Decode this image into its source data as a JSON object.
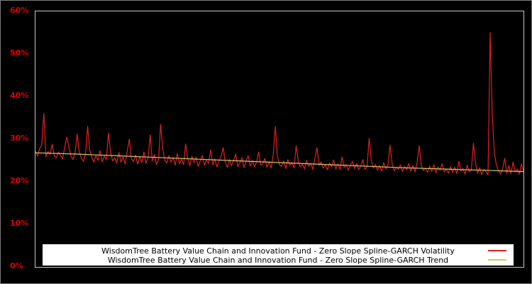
{
  "figure": {
    "background": "#000000",
    "border_color": "#7a7a7a"
  },
  "axis": {
    "tick_color": "#dd0000",
    "frame_color": "#c8c8c8"
  },
  "legend": {
    "background": "#ffffff",
    "text_color": "#000000"
  },
  "chart_data": {
    "type": "line",
    "title": "",
    "xlabel": "",
    "ylabel": "",
    "ylim": [
      0,
      60
    ],
    "grid": false,
    "legend_position": "bottom-center",
    "yticks": [
      "60%",
      "50%",
      "40%",
      "30%",
      "20%",
      "10%",
      "0%"
    ],
    "series": [
      {
        "name": "WisdomTree Battery Value Chain and Innovation Fund - Zero Slope Spline-GARCH Volatility",
        "color": "#e02020",
        "stroke_width": 1.2,
        "values": [
          27.2,
          26.0,
          27.8,
          28.6,
          36.0,
          25.9,
          27.1,
          26.4,
          28.8,
          26.1,
          25.6,
          27.0,
          26.2,
          25.4,
          28.0,
          30.5,
          28.3,
          26.0,
          25.2,
          26.8,
          31.2,
          27.0,
          25.5,
          24.8,
          26.5,
          33.0,
          27.5,
          25.8,
          24.6,
          26.2,
          25.0,
          27.3,
          24.7,
          26.0,
          25.2,
          31.5,
          26.8,
          24.9,
          25.6,
          24.4,
          26.9,
          24.6,
          25.8,
          24.2,
          27.2,
          30.0,
          25.4,
          24.8,
          26.3,
          24.1,
          25.9,
          24.5,
          27.0,
          24.3,
          25.6,
          31.0,
          24.9,
          26.4,
          24.0,
          25.2,
          33.5,
          27.8,
          25.0,
          24.4,
          26.1,
          24.6,
          25.7,
          23.9,
          26.6,
          24.2,
          25.3,
          24.0,
          28.9,
          25.5,
          23.8,
          26.0,
          24.5,
          25.8,
          23.6,
          24.9,
          26.2,
          23.9,
          25.1,
          24.3,
          27.5,
          24.0,
          25.4,
          23.5,
          24.8,
          26.0,
          28.0,
          24.6,
          23.4,
          25.2,
          23.8,
          24.9,
          26.5,
          23.6,
          24.4,
          25.7,
          23.3,
          24.8,
          26.1,
          23.7,
          25.0,
          23.5,
          24.6,
          27.0,
          23.9,
          24.2,
          25.5,
          23.4,
          24.7,
          23.2,
          26.3,
          33.0,
          26.0,
          24.0,
          23.6,
          24.9,
          23.1,
          25.2,
          23.8,
          24.5,
          23.3,
          28.5,
          24.7,
          23.5,
          24.1,
          23.0,
          25.0,
          23.6,
          24.3,
          22.9,
          25.6,
          28.0,
          23.8,
          24.6,
          23.2,
          24.0,
          22.8,
          24.4,
          23.5,
          25.1,
          23.0,
          24.2,
          22.9,
          25.8,
          23.4,
          24.0,
          22.7,
          23.9,
          24.8,
          23.1,
          24.3,
          22.8,
          23.7,
          25.2,
          22.9,
          23.5,
          30.2,
          25.0,
          23.2,
          24.1,
          22.7,
          23.8,
          22.5,
          24.5,
          23.0,
          23.9,
          28.6,
          24.2,
          22.6,
          23.4,
          22.9,
          24.0,
          22.4,
          23.6,
          22.8,
          24.3,
          22.5,
          23.8,
          22.3,
          24.6,
          28.5,
          23.9,
          22.6,
          23.2,
          22.2,
          23.7,
          22.4,
          24.0,
          22.1,
          23.5,
          22.7,
          24.2,
          22.3,
          23.0,
          22.0,
          23.6,
          22.2,
          23.4,
          21.9,
          24.8,
          22.5,
          23.1,
          21.8,
          23.9,
          22.3,
          22.8,
          29.0,
          24.5,
          22.0,
          23.3,
          21.7,
          22.9,
          22.4,
          21.6,
          55.0,
          36.0,
          27.0,
          24.0,
          22.5,
          21.8,
          23.2,
          25.5,
          22.0,
          23.8,
          21.9,
          24.6,
          22.3,
          23.0,
          21.8,
          24.2,
          22.6
        ]
      },
      {
        "name": "WisdomTree Battery Value Chain and Innovation Fund - Zero Slope Spline-GARCH Trend",
        "color": "#cccc66",
        "stroke_width": 1.2,
        "values": [
          26.8,
          26.5,
          26.1,
          25.7,
          25.3,
          24.9,
          24.5,
          24.1,
          23.7,
          23.3,
          23.0,
          22.7,
          22.4
        ]
      }
    ]
  }
}
